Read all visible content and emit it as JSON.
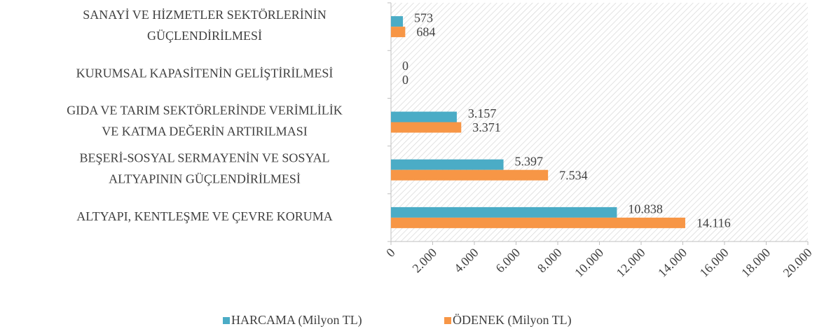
{
  "chart_data": {
    "type": "hbar",
    "categories": [
      [
        "SANAYİ VE HİZMETLER SEKTÖRLERİNİN",
        "GÜÇLENDİRİLMESİ"
      ],
      [
        "KURUMSAL KAPASİTENİN GELİŞTİRİLMESİ"
      ],
      [
        "GIDA VE TARIM SEKTÖRLERİNDE VERİMLİLİK",
        "VE KATMA DEĞERİN ARTIRILMASI"
      ],
      [
        "BEŞERİ-SOSYAL SERMAYENİN VE SOSYAL",
        "ALTYAPININ GÜÇLENDİRİLMESİ"
      ],
      [
        "ALTYAPI, KENTLEŞME VE ÇEVRE KORUMA"
      ]
    ],
    "series": [
      {
        "name": "HARCAMA (Milyon TL)",
        "color": "#4bacc6",
        "values": [
          573,
          0,
          3157,
          5397,
          10838
        ],
        "value_labels": [
          "573",
          "0",
          "3.157",
          "5.397",
          "10.838"
        ]
      },
      {
        "name": "ÖDENEK (Milyon TL)",
        "color": "#f79646",
        "values": [
          684,
          0,
          3371,
          7534,
          14116
        ],
        "value_labels": [
          "684",
          "0",
          "3.371",
          "7.534",
          "14.116"
        ]
      }
    ],
    "xlim": [
      0,
      20000
    ],
    "xticks": [
      0,
      {
        "value": 2000,
        "label": "2.000"
      },
      {
        "value": 4000,
        "label": "4.000"
      },
      {
        "value": 6000,
        "label": "6.000"
      },
      {
        "value": 8000,
        "label": "8.000"
      },
      {
        "value": 10000,
        "label": "10.000"
      },
      {
        "value": 12000,
        "label": "12.000"
      },
      {
        "value": 14000,
        "label": "14.000"
      },
      {
        "value": 16000,
        "label": "16.000"
      },
      {
        "value": 18000,
        "label": "18.000"
      },
      {
        "value": 20000,
        "label": "20.000"
      }
    ],
    "legend": "bottom"
  }
}
